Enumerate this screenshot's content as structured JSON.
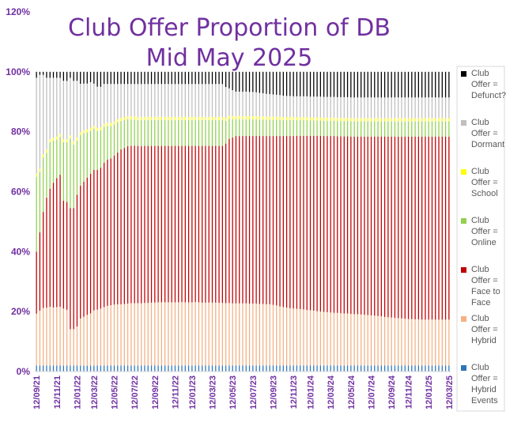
{
  "chart_data": {
    "type": "bar",
    "stacked": "percent",
    "title_lines": [
      "Club Offer Proportion of DB",
      "Mid May 2025"
    ],
    "xlabel": "",
    "ylabel": "",
    "ylim": [
      0,
      120
    ],
    "y_ticks": [
      "0%",
      "20%",
      "40%",
      "60%",
      "80%",
      "100%",
      "120%"
    ],
    "x_tick_labels": [
      "12/09/21",
      "12/11/21",
      "12/01/22",
      "12/03/22",
      "12/05/22",
      "12/07/22",
      "12/09/22",
      "12/11/22",
      "12/01/23",
      "12/03/23",
      "12/05/23",
      "12/07/23",
      "12/09/23",
      "12/11/23",
      "12/01/24",
      "12/03/24",
      "12/05/24",
      "12/07/24",
      "12/09/24",
      "12/11/24",
      "12/01/25",
      "12/03/25"
    ],
    "grid": false,
    "legend_position": "right",
    "series": [
      {
        "name": "Club Offer = Hybrid Events",
        "label_lines": [
          "Club",
          "Offer =",
          "Hybrid",
          "Events"
        ],
        "color": "#2E75B6",
        "values": [
          2,
          2,
          2,
          2,
          2,
          2,
          2,
          2,
          2,
          2,
          2,
          2,
          2,
          2,
          2,
          2,
          2,
          2,
          2,
          2,
          2,
          2,
          2,
          2,
          2,
          2,
          2,
          2,
          2,
          2,
          2,
          2,
          2,
          2,
          2,
          2,
          2,
          2,
          2,
          2,
          2,
          2,
          2,
          2,
          2,
          2,
          2,
          2,
          2,
          2,
          2,
          2,
          2,
          2,
          2,
          2,
          2,
          2,
          2,
          2,
          2,
          2,
          2,
          2,
          2,
          2,
          2,
          2,
          2,
          2,
          2,
          2,
          2,
          2,
          2,
          2,
          2,
          2,
          2,
          2,
          2,
          2,
          2,
          2,
          2,
          2,
          2,
          2,
          2,
          2,
          2,
          2,
          2,
          2,
          2,
          2,
          2,
          2,
          2,
          2,
          2,
          2,
          2,
          2,
          2,
          2,
          2,
          2,
          2,
          2,
          2,
          2,
          2,
          2,
          2,
          2,
          2,
          2,
          2,
          2,
          2,
          2,
          2
        ]
      },
      {
        "name": "Club Offer = Hybrid",
        "label_lines": [
          "Club",
          "Offer =",
          "Hybrid"
        ],
        "color": "#F4B183",
        "values": [
          17.3,
          18.1,
          18.8,
          19.3,
          19.6,
          19.4,
          19.3,
          19.4,
          19,
          18.4,
          12,
          12,
          13,
          15.7,
          16.5,
          17.3,
          17.7,
          18.6,
          18.9,
          19,
          19.3,
          19.7,
          19.8,
          20,
          20.1,
          20.1,
          20.2,
          20.3,
          20.4,
          20.4,
          20.4,
          20.4,
          20.5,
          20.5,
          20.6,
          20.6,
          20.7,
          20.7,
          20.7,
          20.7,
          20.7,
          20.7,
          20.7,
          20.8,
          20.7,
          20.7,
          20.7,
          20.8,
          20.7,
          20.6,
          20.6,
          20.6,
          20.6,
          20.6,
          20.5,
          20.5,
          20.5,
          20.4,
          20.3,
          20.3,
          20.3,
          20.3,
          20.3,
          20.2,
          20.2,
          20.2,
          20.1,
          20.1,
          20,
          20,
          19.8,
          19.6,
          19.3,
          19.1,
          18.9,
          18.7,
          18.6,
          18.5,
          18.4,
          18.3,
          18.1,
          18,
          17.9,
          17.7,
          17.6,
          17.5,
          17.4,
          17.3,
          17.2,
          17.2,
          17.1,
          17,
          17,
          16.9,
          16.8,
          16.8,
          16.7,
          16.6,
          16.5,
          16.4,
          16.3,
          16.2,
          16.1,
          15.9,
          15.8,
          15.7,
          15.6,
          15.5,
          15.4,
          15.3,
          15.2,
          15.2,
          15.1,
          15.1,
          15,
          15,
          15,
          15,
          15,
          15,
          15,
          15,
          15
        ]
      },
      {
        "name": "Club Offer = Face to Face",
        "label_lines": [
          "Club",
          "Offer =",
          "Face to",
          "Face"
        ],
        "color": "#C00000",
        "values": [
          20.7,
          25.9,
          31.4,
          36.7,
          39.4,
          41.6,
          42.6,
          43.6,
          36,
          35.6,
          40,
          40,
          44,
          44.3,
          45.5,
          46.7,
          47.3,
          47.4,
          47.1,
          47,
          47.7,
          48.3,
          48.2,
          49,
          49.9,
          50.9,
          51.3,
          51.7,
          51.6,
          51.6,
          51.6,
          51.6,
          51.5,
          51.5,
          51.4,
          51.4,
          51.3,
          51.3,
          51.3,
          51.3,
          51.3,
          51.3,
          51.3,
          51.2,
          51.3,
          51.3,
          51.3,
          51.2,
          51.3,
          51.4,
          51.4,
          51.4,
          51.4,
          51.4,
          51.5,
          51.5,
          52.5,
          53.6,
          54.2,
          54.7,
          54.7,
          54.7,
          54.7,
          54.8,
          54.8,
          54.8,
          54.9,
          54.9,
          55,
          55,
          55.2,
          55.4,
          55.7,
          55.9,
          56.1,
          56.3,
          56.4,
          56.5,
          56.6,
          56.7,
          56.9,
          57,
          57.1,
          57.3,
          57.4,
          57.5,
          57.6,
          57.7,
          57.8,
          57.8,
          57.9,
          58,
          58,
          58.1,
          58.2,
          58.2,
          58.3,
          58.4,
          58.5,
          58.6,
          58.7,
          58.8,
          58.9,
          59.1,
          59.2,
          59.3,
          59.4,
          59.5,
          59.6,
          59.7,
          59.8,
          59.8,
          59.9,
          59.9,
          60,
          60,
          60,
          60,
          60,
          60,
          60,
          60,
          60
        ]
      },
      {
        "name": "Club Offer = Online",
        "label_lines": [
          "Club",
          "Offer =",
          "Online"
        ],
        "color": "#92D050",
        "values": [
          25,
          20,
          17.8,
          15,
          15.5,
          14,
          12.7,
          12.5,
          19.5,
          19.7,
          23,
          21,
          18,
          16.9,
          16.3,
          15.4,
          14.5,
          13.8,
          13.1,
          12.5,
          11.8,
          11.1,
          10.7,
          10.2,
          9.9,
          9.4,
          9.1,
          8.8,
          8.7,
          8.5,
          8.5,
          8.5,
          8.5,
          8.5,
          8.5,
          8.5,
          8.5,
          8.5,
          8.5,
          8.5,
          8.5,
          8.5,
          8.5,
          8.5,
          8.5,
          8.5,
          8.5,
          8.5,
          8.5,
          8.5,
          8.5,
          8.5,
          8.5,
          8.5,
          8.5,
          8.5,
          7.5,
          6.5,
          6,
          5.5,
          5.5,
          5.5,
          5.5,
          5.5,
          5.5,
          5.4,
          5.4,
          5.4,
          5.3,
          5.3,
          5.3,
          5.3,
          5.3,
          5.2,
          5.2,
          5.2,
          5.2,
          5.1,
          5.1,
          5.1,
          5.1,
          5,
          5,
          5,
          5,
          5,
          5,
          5,
          5,
          5,
          5,
          5,
          5,
          5,
          5,
          5,
          5,
          5,
          5,
          5,
          5,
          5,
          5,
          5,
          5,
          5,
          5,
          5,
          5,
          5,
          5,
          5,
          5,
          5,
          5,
          5,
          5,
          5,
          5,
          5,
          5,
          5,
          5
        ]
      },
      {
        "name": "Club Offer = School",
        "label_lines": [
          "Club",
          "Offer =",
          "School"
        ],
        "color": "#FFFF00",
        "values": [
          1,
          1,
          1,
          1,
          1,
          1,
          1,
          1,
          1,
          1,
          1,
          1,
          1,
          1,
          1,
          1,
          1,
          1,
          1,
          1,
          1,
          1,
          1,
          1,
          1,
          1,
          1,
          1,
          1,
          1,
          1,
          1,
          1,
          1,
          1,
          1,
          1,
          1,
          1,
          1,
          1,
          1,
          1,
          1,
          1,
          1,
          1,
          1,
          1,
          1,
          1,
          1,
          1,
          1,
          1,
          1,
          1,
          1,
          1,
          1,
          1,
          1,
          1,
          1,
          1,
          1,
          1,
          1,
          1,
          1,
          1,
          1,
          1,
          1,
          1,
          1,
          1,
          1,
          1,
          1,
          1,
          1,
          1,
          1,
          1,
          1,
          1,
          1,
          1,
          1,
          1,
          1,
          1,
          1,
          1,
          1,
          1,
          1,
          1,
          1,
          1,
          1,
          1,
          1,
          1,
          1,
          1,
          1,
          1,
          1,
          1,
          1,
          1,
          1,
          1,
          1,
          1,
          1,
          1,
          1,
          1,
          1,
          1
        ]
      },
      {
        "name": "Club Offer = Dormant",
        "label_lines": [
          "Club",
          "Offer =",
          "Dormant"
        ],
        "color": "#BFBFBF",
        "values": [
          32,
          31,
          26,
          24,
          20.5,
          20,
          19.4,
          18.5,
          19.5,
          19.3,
          19,
          20,
          19,
          16.1,
          15.7,
          15.6,
          15.5,
          14.2,
          13.9,
          13.5,
          13.2,
          12.9,
          12.8,
          12.3,
          11.6,
          11.1,
          10.9,
          10.6,
          10.6,
          10.7,
          10.8,
          10.9,
          10.8,
          10.8,
          10.8,
          10.8,
          10.8,
          10.8,
          10.8,
          10.8,
          10.8,
          10.8,
          10.8,
          10.8,
          10.8,
          10.8,
          10.8,
          10.8,
          10.8,
          10.8,
          10.8,
          10.8,
          10.8,
          10.8,
          10.8,
          10.8,
          10.1,
          9,
          8.5,
          8,
          8,
          8,
          8,
          7.9,
          7.9,
          7.8,
          7.7,
          7.6,
          7.5,
          7.4,
          7.3,
          7.2,
          7.1,
          7,
          6.9,
          6.9,
          6.8,
          6.8,
          6.8,
          6.8,
          6.8,
          6.8,
          6.8,
          6.8,
          6.8,
          6.8,
          6.8,
          6.8,
          6.8,
          6.8,
          6.8,
          6.8,
          6.8,
          6.8,
          6.8,
          6.8,
          6.8,
          6.8,
          6.8,
          6.8,
          6.8,
          6.8,
          6.8,
          6.8,
          6.8,
          6.8,
          6.8,
          6.8,
          6.8,
          6.8,
          6.8,
          6.8,
          6.8,
          6.8,
          6.8,
          6.8,
          6.8,
          6.8,
          6.8,
          6.8,
          6.8,
          6.8,
          6.8
        ]
      },
      {
        "name": "Club Offer = Defunct?",
        "label_lines": [
          "Club",
          "Offer =",
          "Defunct?"
        ],
        "color": "#000000",
        "values": [
          2,
          1,
          1,
          2,
          2,
          2,
          2,
          2,
          3,
          3,
          2,
          3,
          3,
          4,
          4,
          4,
          3.5,
          4,
          5,
          5,
          4,
          4,
          4,
          4,
          4,
          4,
          4,
          4,
          4,
          4,
          4,
          4,
          4,
          4,
          4,
          4,
          4,
          4,
          4,
          4,
          4,
          4,
          4,
          4,
          4,
          4,
          4,
          4,
          4,
          4,
          4,
          4,
          4,
          4,
          4,
          4,
          5,
          5.4,
          6,
          6.5,
          6.5,
          6.5,
          6.5,
          6.6,
          6.6,
          6.7,
          6.9,
          7,
          7.2,
          7.3,
          7.4,
          7.5,
          7.6,
          7.8,
          7.9,
          7.9,
          8,
          8,
          8,
          8,
          8,
          8.1,
          8.1,
          8.1,
          8.1,
          8.2,
          8.2,
          8.2,
          8.2,
          8.3,
          8.3,
          8.3,
          8.3,
          8.4,
          8.4,
          8.4,
          8.4,
          8.4,
          8.4,
          8.4,
          8.4,
          8.4,
          8.4,
          8.4,
          8.4,
          8.4,
          8.4,
          8.4,
          8.4,
          8.4,
          8.4,
          8.4,
          8.4,
          8.4,
          8.4,
          8.4,
          8.4,
          8.4,
          8.4,
          8.4,
          8.4,
          8.4,
          8.4
        ]
      }
    ]
  }
}
